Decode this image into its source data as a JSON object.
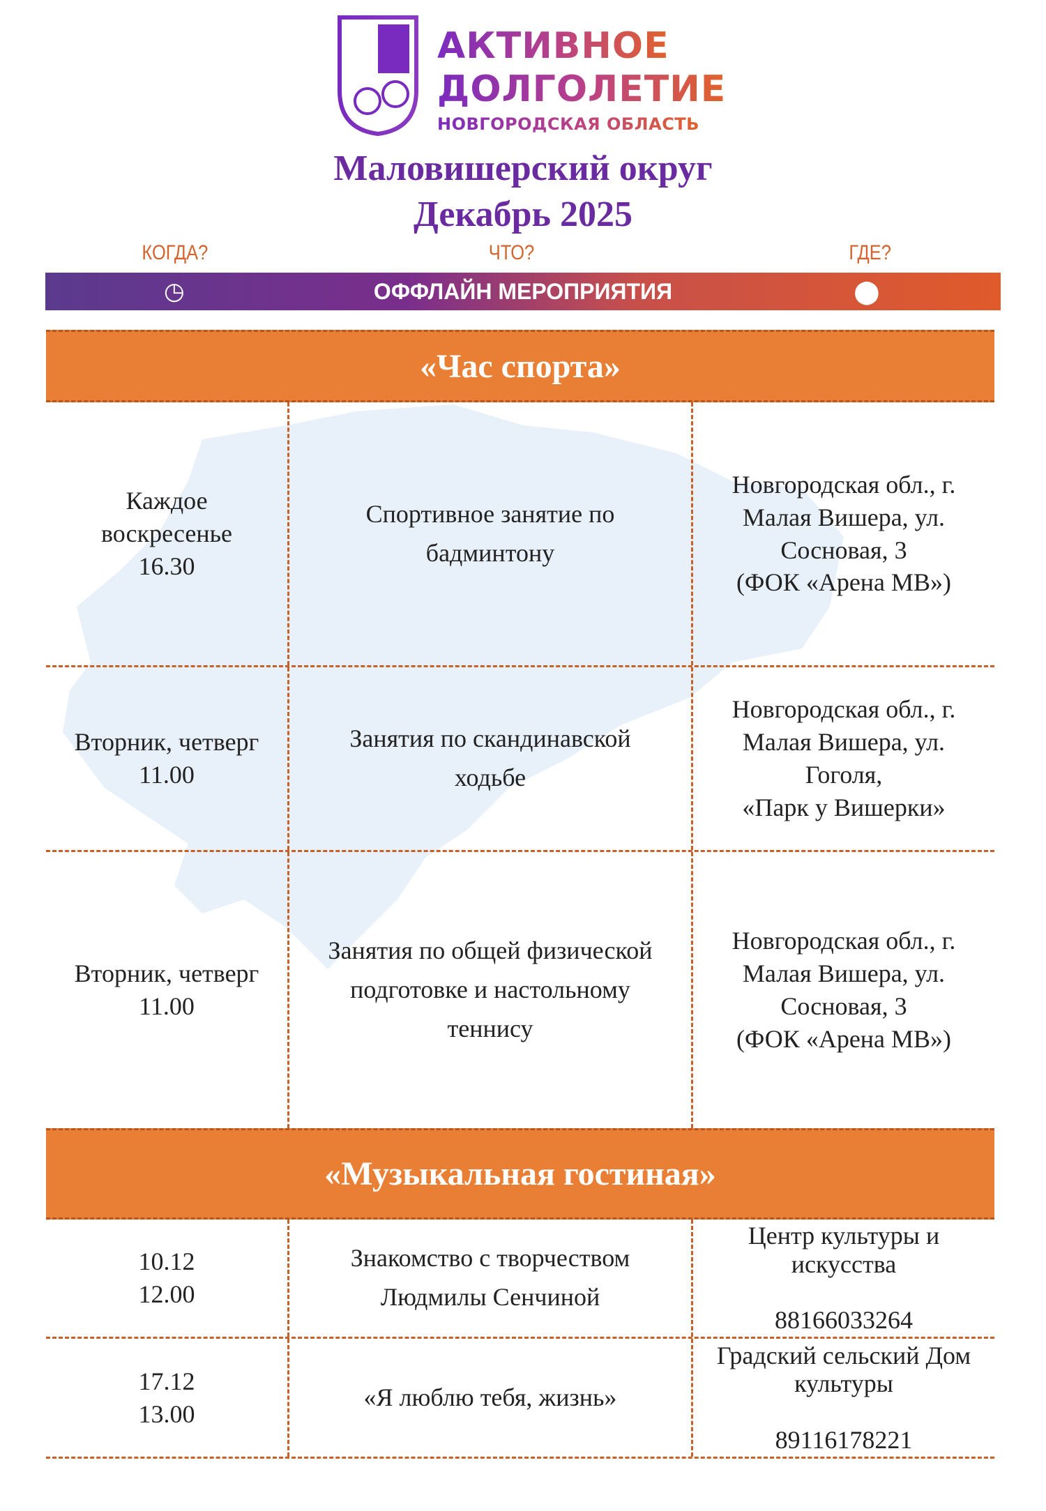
{
  "logo": {
    "line1": "АКТИВНОЕ",
    "line2": "ДОЛГОЛЕТИЕ",
    "line3": "НОВГОРОДСКАЯ ОБЛАСТЬ"
  },
  "title": {
    "district": "Маловишерский округ",
    "month": "Декабрь 2025"
  },
  "columns": {
    "when": "КОГДА?",
    "what": "ЧТО?",
    "where": "ГДЕ?"
  },
  "banner": {
    "label": "ОФФЛАЙН МЕРОПРИЯТИЯ",
    "left_icon": "clock-icon",
    "right_icon": "location-pin-icon"
  },
  "sections": [
    {
      "title": "«Час спорта»",
      "rows": [
        {
          "when": "Каждое\nвоскресенье\n16.30",
          "what": "Спортивное занятие по\nбадминтону",
          "where": "Новгородская обл., г.\nМалая Вишера, ул.\nСосновая, 3\n(ФОК «Арена МВ»)"
        },
        {
          "when": "Вторник, четверг\n11.00",
          "what": "Занятия по скандинавской\nходьбе",
          "where": "Новгородская обл., г.\nМалая Вишера, ул.\nГоголя,\n«Парк у Вишерки»"
        },
        {
          "when": "Вторник, четверг\n11.00",
          "what": "Занятия по общей физической\nподготовке и настольному\nтеннису",
          "where": "Новгородская обл., г.\nМалая Вишера, ул.\nСосновая, 3\n(ФОК «Арена МВ»)"
        }
      ]
    },
    {
      "title": "«Музыкальная гостиная»",
      "rows": [
        {
          "when": "10.12\n12.00",
          "what": "Знакомство с творчеством\nЛюдмилы Сенчиной",
          "where": "Центр культуры и\nискусства\n\n88166033264"
        },
        {
          "when": "17.12\n13.00",
          "what": "«Я люблю тебя, жизнь»",
          "where": "Градский сельский Дом\nкультуры\n\n89116178221"
        }
      ]
    }
  ],
  "colors": {
    "purple": "#6a2aa0",
    "orange": "#e97f35",
    "map": "#e8f0f9"
  }
}
